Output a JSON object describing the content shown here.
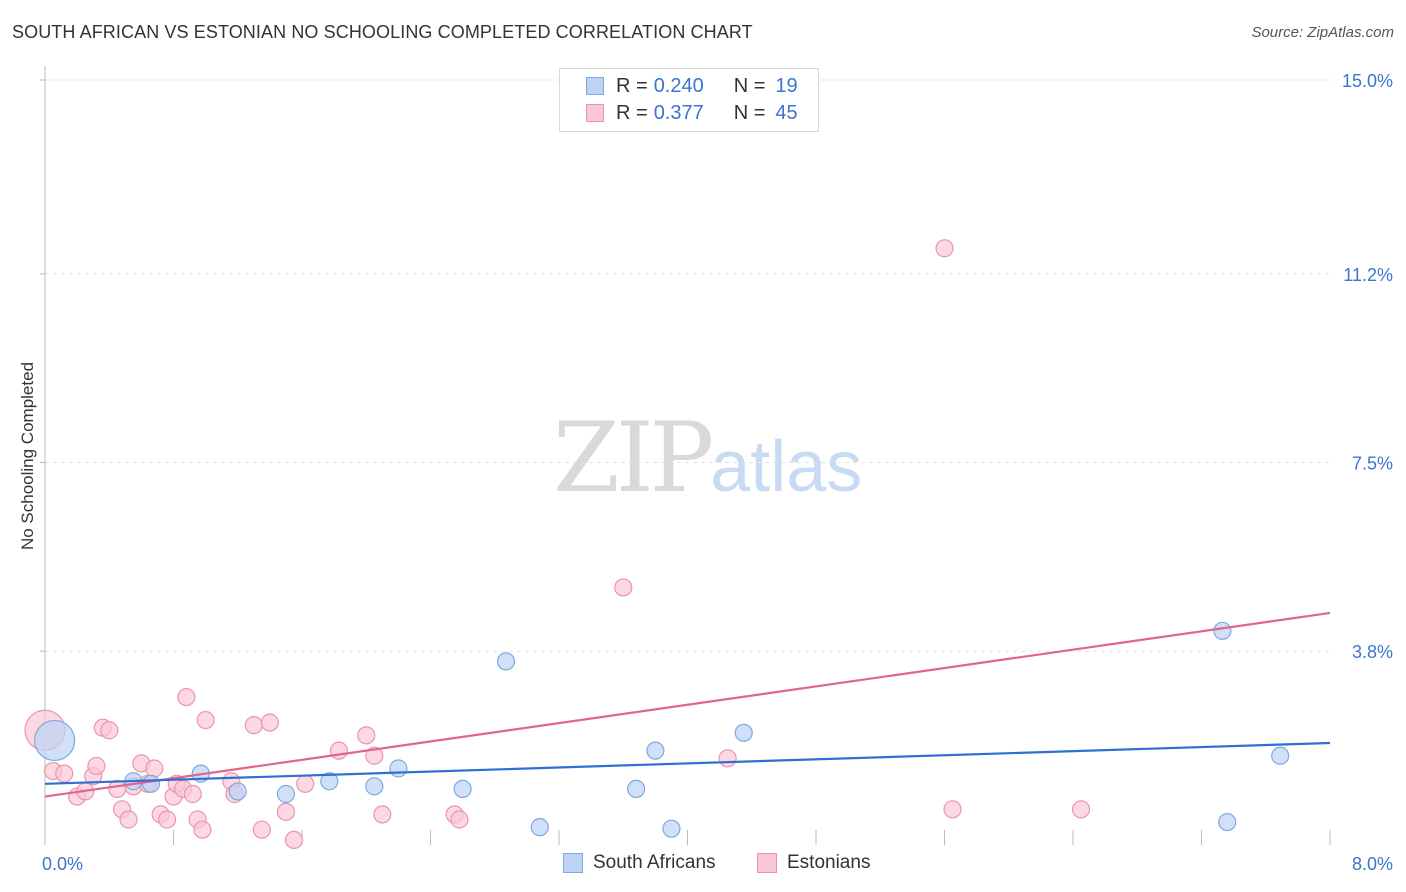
{
  "title": "SOUTH AFRICAN VS ESTONIAN NO SCHOOLING COMPLETED CORRELATION CHART",
  "source": "Source: ZipAtlas.com",
  "watermark": {
    "part1": "ZIP",
    "part2": "atlas"
  },
  "legend_top": {
    "rows": [
      {
        "r_label": "R =",
        "r_value": "0.240",
        "n_label": "N =",
        "n_value": "19"
      },
      {
        "r_label": "R =",
        "r_value": "0.377",
        "n_label": "N =",
        "n_value": "45"
      }
    ]
  },
  "legend_bottom": {
    "items": [
      {
        "label": "South Africans"
      },
      {
        "label": "Estonians"
      }
    ]
  },
  "colors": {
    "blue_fill": "#bcd3f5",
    "blue_stroke": "#7da8e0",
    "blue_line": "#2f6fd1",
    "pink_fill": "#f9c8d6",
    "pink_stroke": "#eb94ae",
    "pink_line": "#e0658f",
    "tick_label": "#3b75d0"
  },
  "chart_data": {
    "type": "scatter",
    "title": "SOUTH AFRICAN VS ESTONIAN NO SCHOOLING COMPLETED CORRELATION CHART",
    "xlabel": "",
    "ylabel": "No Schooling Completed",
    "xlim": [
      0,
      8.0
    ],
    "ylim": [
      0,
      15.0
    ],
    "x_tick_labels": [
      {
        "value": 0,
        "label": "0.0%"
      },
      {
        "value": 8.0,
        "label": "8.0%"
      }
    ],
    "y_tick_labels": [
      {
        "value": 3.8,
        "label": "3.8%"
      },
      {
        "value": 7.5,
        "label": "7.5%"
      },
      {
        "value": 11.2,
        "label": "11.2%"
      },
      {
        "value": 15.0,
        "label": "15.0%"
      }
    ],
    "grid": true,
    "legend": "bottom-center",
    "series": [
      {
        "name": "South Africans",
        "r": 0.24,
        "n": 19,
        "trend": {
          "x": [
            0,
            8.0
          ],
          "y": [
            1.2,
            2.0
          ]
        },
        "points": [
          {
            "x": 0.06,
            "y": 2.05,
            "size": "large"
          },
          {
            "x": 0.55,
            "y": 1.25
          },
          {
            "x": 0.66,
            "y": 1.2
          },
          {
            "x": 0.97,
            "y": 1.4
          },
          {
            "x": 1.2,
            "y": 1.05
          },
          {
            "x": 1.5,
            "y": 1.0
          },
          {
            "x": 1.77,
            "y": 1.25
          },
          {
            "x": 2.05,
            "y": 1.15
          },
          {
            "x": 2.2,
            "y": 1.5
          },
          {
            "x": 2.6,
            "y": 1.1
          },
          {
            "x": 2.87,
            "y": 3.6
          },
          {
            "x": 3.08,
            "y": 0.35
          },
          {
            "x": 3.68,
            "y": 1.1
          },
          {
            "x": 3.8,
            "y": 1.85
          },
          {
            "x": 3.9,
            "y": 0.32
          },
          {
            "x": 4.35,
            "y": 2.2
          },
          {
            "x": 7.33,
            "y": 4.2
          },
          {
            "x": 7.36,
            "y": 0.45
          },
          {
            "x": 7.69,
            "y": 1.75
          }
        ]
      },
      {
        "name": "Estonians",
        "r": 0.377,
        "n": 45,
        "trend": {
          "x": [
            0,
            8.0
          ],
          "y": [
            0.95,
            4.55
          ]
        },
        "points": [
          {
            "x": 0.0,
            "y": 2.25,
            "size": "large"
          },
          {
            "x": 0.05,
            "y": 1.45
          },
          {
            "x": 0.12,
            "y": 1.4
          },
          {
            "x": 0.2,
            "y": 0.95
          },
          {
            "x": 0.25,
            "y": 1.05
          },
          {
            "x": 0.3,
            "y": 1.35
          },
          {
            "x": 0.32,
            "y": 1.55
          },
          {
            "x": 0.36,
            "y": 2.3
          },
          {
            "x": 0.4,
            "y": 2.25
          },
          {
            "x": 0.45,
            "y": 1.1
          },
          {
            "x": 0.48,
            "y": 0.7
          },
          {
            "x": 0.52,
            "y": 0.5
          },
          {
            "x": 0.55,
            "y": 1.15
          },
          {
            "x": 0.6,
            "y": 1.6
          },
          {
            "x": 0.64,
            "y": 1.2
          },
          {
            "x": 0.68,
            "y": 1.5
          },
          {
            "x": 0.72,
            "y": 0.6
          },
          {
            "x": 0.76,
            "y": 0.5
          },
          {
            "x": 0.8,
            "y": 0.95
          },
          {
            "x": 0.82,
            "y": 1.2
          },
          {
            "x": 0.86,
            "y": 1.1
          },
          {
            "x": 0.88,
            "y": 2.9
          },
          {
            "x": 0.92,
            "y": 1.0
          },
          {
            "x": 0.95,
            "y": 0.5
          },
          {
            "x": 0.98,
            "y": 0.3
          },
          {
            "x": 1.0,
            "y": 2.45
          },
          {
            "x": 1.16,
            "y": 1.25
          },
          {
            "x": 1.18,
            "y": 1.0
          },
          {
            "x": 1.3,
            "y": 2.35
          },
          {
            "x": 1.35,
            "y": 0.3
          },
          {
            "x": 1.4,
            "y": 2.4
          },
          {
            "x": 1.5,
            "y": 0.65
          },
          {
            "x": 1.55,
            "y": 0.1
          },
          {
            "x": 1.62,
            "y": 1.2
          },
          {
            "x": 1.83,
            "y": 1.85
          },
          {
            "x": 2.0,
            "y": 2.15
          },
          {
            "x": 2.05,
            "y": 1.75
          },
          {
            "x": 2.1,
            "y": 0.6
          },
          {
            "x": 2.55,
            "y": 0.6
          },
          {
            "x": 2.58,
            "y": 0.5
          },
          {
            "x": 3.6,
            "y": 5.05
          },
          {
            "x": 4.25,
            "y": 1.7
          },
          {
            "x": 5.6,
            "y": 11.7
          },
          {
            "x": 5.65,
            "y": 0.7
          },
          {
            "x": 6.45,
            "y": 0.7
          }
        ]
      }
    ]
  }
}
